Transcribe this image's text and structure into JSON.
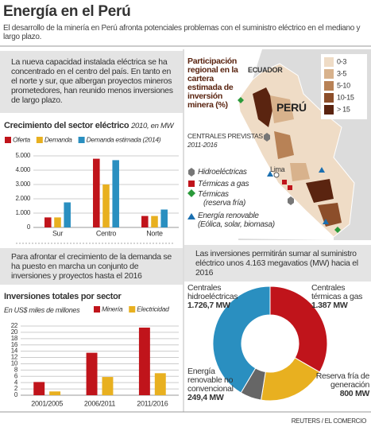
{
  "header": {
    "title": "Energía en el Perú",
    "subtitle": "El desarrollo de la minería en Perú afronta potenciales problemas con el suministro eléctrico en el mediano y largo plazo."
  },
  "notes": [
    "La nueva capacidad instalada eléctrica se ha concentrado en el centro del país. En tanto en el norte y sur, que albergan proyectos mineros prometedores, han reunido menos inversiones de largo plazo.",
    "Para afrontar el crecimiento de la demanda se ha puesto en marcha un conjunto de inversiones y proyectos hasta el 2016",
    "Las inversiones permitirán sumar al suministro eléctrico unos 4.163 megavatios (MW) hacia el 2016"
  ],
  "map": {
    "title": "Participación regional en la cartera estimada de inversión minera (%)",
    "country": "PERÚ",
    "neighbor": "ECUADOR",
    "city": "Lima",
    "legend": [
      {
        "label": "0-3",
        "color": "#efdcc6"
      },
      {
        "label": "3-5",
        "color": "#d8b28c"
      },
      {
        "label": "5-10",
        "color": "#b88256"
      },
      {
        "label": "10-15",
        "color": "#8c4e2a"
      },
      {
        "label": "> 15",
        "color": "#5a2410"
      }
    ],
    "plants_title": "CENTRALES PREVISTAS",
    "plants_period": "2011-2016",
    "plant_types": [
      {
        "label": "Hidroeléctricas"
      },
      {
        "label": "Térmicas a gas"
      },
      {
        "label": "Térmicas",
        "detail": "(reserva fría)"
      },
      {
        "label": "Energía renovable",
        "detail": "(Eólica, solar, biomasa)"
      }
    ]
  },
  "chart_data": [
    {
      "type": "bar",
      "title": "Crecimiento del sector eléctrico",
      "subtitle": "2010, en MW",
      "categories": [
        "Sur",
        "Centro",
        "Norte"
      ],
      "series": [
        {
          "name": "Oferta",
          "color": "#c0141b",
          "values": [
            700,
            4800,
            800
          ]
        },
        {
          "name": "Demanda",
          "color": "#e8b020",
          "values": [
            700,
            3000,
            800
          ]
        },
        {
          "name": "Demanda estimada (2014)",
          "color": "#2a8fc0",
          "values": [
            1750,
            4700,
            1250
          ]
        }
      ],
      "ylim": [
        0,
        5000
      ],
      "yticks": [
        0,
        {
          "value": 1000,
          "label": "1.000"
        },
        {
          "value": 2000,
          "label": "2.000"
        },
        {
          "value": 3000,
          "label": "3.000"
        },
        {
          "value": 4000,
          "label": "4.000"
        },
        {
          "value": 5000,
          "label": "5.000"
        }
      ],
      "grid": true
    },
    {
      "type": "bar",
      "title": "Inversiones totales por sector",
      "subtitle": "En US$ miles de millones",
      "categories": [
        "2001/2005",
        "2006/2011",
        "2011/2016"
      ],
      "series": [
        {
          "name": "Minería",
          "color": "#c0141b",
          "values": [
            4.2,
            13.5,
            21.5
          ]
        },
        {
          "name": "Electricidad",
          "color": "#e8b020",
          "values": [
            1.2,
            5.8,
            7.0
          ]
        }
      ],
      "ylim": [
        0,
        22
      ],
      "yticks": [
        0,
        2,
        4,
        6,
        8,
        10,
        12,
        14,
        16,
        18,
        20,
        22
      ],
      "grid": true
    },
    {
      "type": "pie",
      "categories": [
        "Centrales térmicas a gas",
        "Reserva fría de generación",
        "Energía renovable no convencional",
        "Centrales hidroeléctricas"
      ],
      "values": [
        1387,
        800,
        249.4,
        1726.7
      ],
      "value_labels": [
        "1.387 MW",
        "800 MW",
        "249,4 MW",
        "1.726,7 MW"
      ],
      "colors": [
        "#c0141b",
        "#e8b020",
        "#666666",
        "#2a8fc0"
      ]
    }
  ],
  "footer": "REUTERS / EL COMERCIO"
}
